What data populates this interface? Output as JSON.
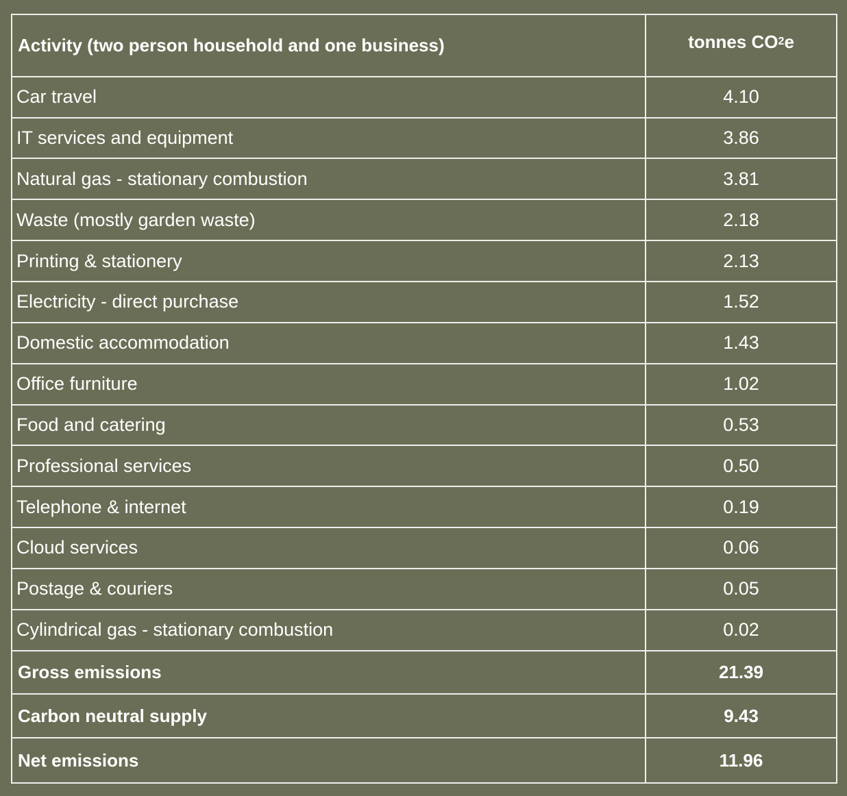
{
  "header": {
    "activity": "Activity (two person household and one business)",
    "unit_prefix": "tonnes CO",
    "unit_sub": "2",
    "unit_suffix": "e"
  },
  "rows": [
    {
      "activity": "Car travel",
      "value": "4.10"
    },
    {
      "activity": "IT services and equipment",
      "value": "3.86"
    },
    {
      "activity": "Natural gas - stationary combustion",
      "value": "3.81"
    },
    {
      "activity": "Waste (mostly garden waste)",
      "value": "2.18"
    },
    {
      "activity": "Printing & stationery",
      "value": "2.13"
    },
    {
      "activity": "Electricity - direct purchase",
      "value": "1.52"
    },
    {
      "activity": "Domestic accommodation",
      "value": "1.43"
    },
    {
      "activity": "Office furniture",
      "value": "1.02"
    },
    {
      "activity": "Food and catering",
      "value": "0.53"
    },
    {
      "activity": "Professional services",
      "value": "0.50"
    },
    {
      "activity": "Telephone & internet",
      "value": "0.19"
    },
    {
      "activity": "Cloud services",
      "value": "0.06"
    },
    {
      "activity": "Postage & couriers",
      "value": "0.05"
    },
    {
      "activity": "Cylindrical gas - stationary combustion",
      "value": "0.02"
    }
  ],
  "totals": [
    {
      "label": "Gross emissions",
      "value": "21.39"
    },
    {
      "label": "Carbon neutral supply",
      "value": "9.43"
    },
    {
      "label": "Net emissions",
      "value": "11.96"
    }
  ],
  "colors": {
    "background": "#6b6e56",
    "border": "#eeeeee",
    "text": "#ffffff"
  }
}
